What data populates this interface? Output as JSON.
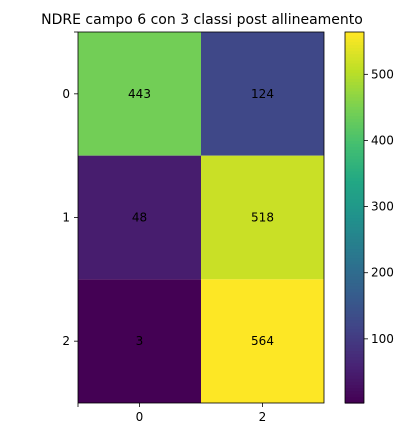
{
  "chart_data": {
    "type": "heatmap",
    "title": "NDRE campo 6 con 3 classi post allineamento",
    "xlabel": "",
    "ylabel": "",
    "x_tick_labels": [
      "",
      "0",
      "2"
    ],
    "y_tick_labels": [
      "0",
      "1",
      "2"
    ],
    "values": [
      [
        443,
        124
      ],
      [
        48,
        518
      ],
      [
        3,
        564
      ]
    ],
    "colormap": "viridis",
    "color_range": [
      3,
      564
    ],
    "colorbar_ticks": [
      100,
      200,
      300,
      400,
      500
    ],
    "colorbar_tick_labels": [
      "100",
      "200",
      "300",
      "400",
      "500"
    ],
    "grid": false
  }
}
